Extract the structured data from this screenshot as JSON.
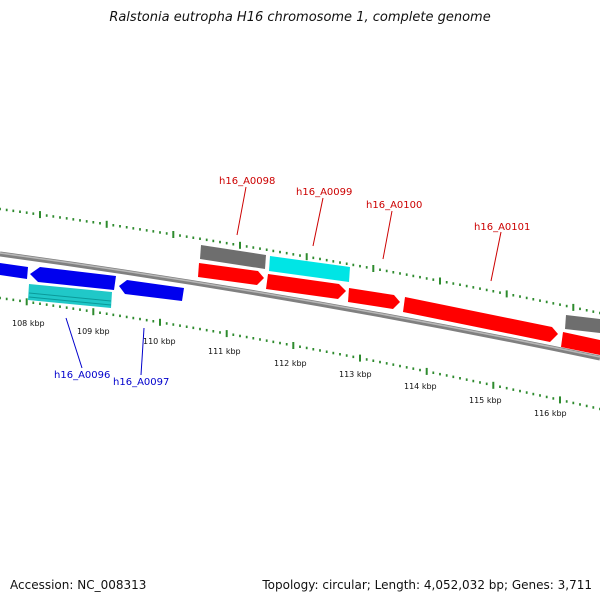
{
  "title": "Ralstonia eutropha H16 chromosome 1, complete genome",
  "footer": {
    "accession": "Accession: NC_008313",
    "summary": "Topology: circular; Length: 4,052,032 bp; Genes: 3,711"
  },
  "colors": {
    "background": "#ffffff",
    "backbone": "#808080",
    "tick": "#2e8b2e",
    "gene_red": "#ff0000",
    "gene_blue": "#0000ee",
    "gene_cyan": "#00e5e5",
    "gene_gray": "#6e6e6e",
    "label_red": "#cc0000",
    "label_blue": "#0000cc"
  },
  "ruler_labels": [
    "108 kbp",
    "109 kbp",
    "110 kbp",
    "111 kbp",
    "112 kbp",
    "113 kbp",
    "114 kbp",
    "115 kbp",
    "116 kbp"
  ],
  "gene_labels": {
    "top": [
      "h16_A0098",
      "h16_A0099",
      "h16_A0100",
      "h16_A0101"
    ],
    "bottom": [
      "h16_A0096",
      "h16_A0097"
    ]
  }
}
